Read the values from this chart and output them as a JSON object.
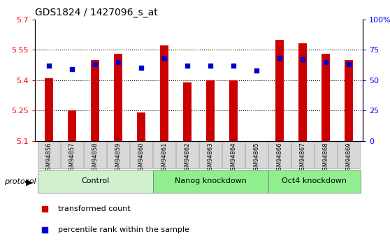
{
  "title": "GDS1824 / 1427096_s_at",
  "samples": [
    "GSM94856",
    "GSM94857",
    "GSM94858",
    "GSM94859",
    "GSM94860",
    "GSM94861",
    "GSM94862",
    "GSM94863",
    "GSM94864",
    "GSM94865",
    "GSM94866",
    "GSM94867",
    "GSM94868",
    "GSM94869"
  ],
  "red_values": [
    5.41,
    5.25,
    5.5,
    5.53,
    5.24,
    5.57,
    5.39,
    5.4,
    5.4,
    5.1,
    5.6,
    5.58,
    5.53,
    5.5
  ],
  "blue_values": [
    62,
    59,
    63,
    65,
    60,
    68,
    62,
    62,
    62,
    58,
    68,
    67,
    65,
    63
  ],
  "ylim_left": [
    5.1,
    5.7
  ],
  "ylim_right": [
    0,
    100
  ],
  "yticks_left": [
    5.1,
    5.25,
    5.4,
    5.55,
    5.7
  ],
  "ytick_labels_left": [
    "5.1",
    "5.25",
    "5.4",
    "5.55",
    "5.7"
  ],
  "yticks_right": [
    0,
    25,
    50,
    75,
    100
  ],
  "ytick_labels_right": [
    "0",
    "25",
    "50",
    "75",
    "100%"
  ],
  "groups": [
    {
      "label": "Control",
      "start": 0,
      "end": 4,
      "color": "#d0f0d0"
    },
    {
      "label": "Nanog knockdown",
      "start": 5,
      "end": 9,
      "color": "#90ee90"
    },
    {
      "label": "Oct4 knockdown",
      "start": 10,
      "end": 13,
      "color": "#90ee90"
    }
  ],
  "bar_color": "#cc0000",
  "dot_color": "#0000cc",
  "baseline": 5.1,
  "bar_width": 0.35,
  "background_color": "#ffffff",
  "plot_bg": "#ffffff",
  "legend_items": [
    "transformed count",
    "percentile rank within the sample"
  ],
  "legend_colors": [
    "#cc0000",
    "#0000cc"
  ]
}
